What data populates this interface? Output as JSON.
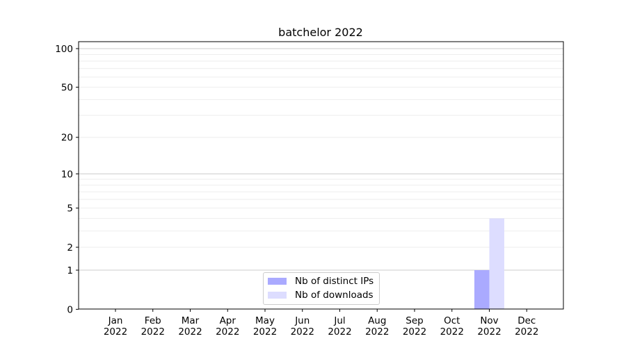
{
  "chart_data": {
    "type": "bar",
    "title": "batchelor 2022",
    "xlabel": "",
    "ylabel": "",
    "yscale": "log(1+y)",
    "ylim": [
      0,
      116
    ],
    "grid": true,
    "legend_position": "lower-center",
    "categories": [
      "Jan\n2022",
      "Feb\n2022",
      "Mar\n2022",
      "Apr\n2022",
      "May\n2022",
      "Jun\n2022",
      "Jul\n2022",
      "Aug\n2022",
      "Sep\n2022",
      "Oct\n2022",
      "Nov\n2022",
      "Dec\n2022"
    ],
    "category_labels": [
      [
        "Jan",
        "2022"
      ],
      [
        "Feb",
        "2022"
      ],
      [
        "Mar",
        "2022"
      ],
      [
        "Apr",
        "2022"
      ],
      [
        "May",
        "2022"
      ],
      [
        "Jun",
        "2022"
      ],
      [
        "Jul",
        "2022"
      ],
      [
        "Aug",
        "2022"
      ],
      [
        "Sep",
        "2022"
      ],
      [
        "Oct",
        "2022"
      ],
      [
        "Nov",
        "2022"
      ],
      [
        "Dec",
        "2022"
      ]
    ],
    "yticks": [
      0,
      1,
      2,
      5,
      10,
      20,
      50,
      100
    ],
    "ytick_labels": [
      "0",
      "1",
      "2",
      "5",
      "10",
      "20",
      "50",
      "100"
    ],
    "series": [
      {
        "name": "Nb of distinct IPs",
        "color": "#aaaaff",
        "values": [
          0,
          0,
          0,
          0,
          0,
          0,
          0,
          0,
          0,
          0,
          1,
          0
        ]
      },
      {
        "name": "Nb of downloads",
        "color": "#ddddff",
        "values": [
          0,
          0,
          0,
          0,
          0,
          0,
          0,
          0,
          0,
          0,
          4,
          0
        ]
      }
    ]
  }
}
